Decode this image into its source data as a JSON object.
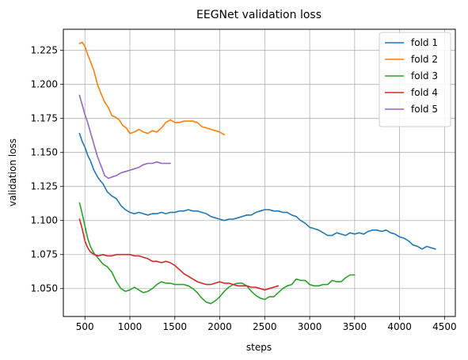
{
  "chart_data": {
    "type": "line",
    "title": "EEGNet validation loss",
    "xlabel": "steps",
    "ylabel": "validation loss",
    "xlim": [
      260,
      4620
    ],
    "ylim": [
      1.0295,
      1.2405
    ],
    "xticks": [
      500,
      1000,
      1500,
      2000,
      2500,
      3000,
      3500,
      4000,
      4500
    ],
    "yticks": [
      1.05,
      1.075,
      1.1,
      1.125,
      1.15,
      1.175,
      1.2,
      1.225
    ],
    "xtick_labels": [
      "500",
      "1000",
      "1500",
      "2000",
      "2500",
      "3000",
      "3500",
      "4000",
      "4500"
    ],
    "ytick_labels": [
      "1.050",
      "1.075",
      "1.100",
      "1.125",
      "1.150",
      "1.175",
      "1.200",
      "1.225"
    ],
    "grid": true,
    "legend_position": "top-right",
    "series": [
      {
        "name": "fold 1",
        "color": "#1f77b4",
        "points": [
          [
            440,
            1.164
          ],
          [
            470,
            1.158
          ],
          [
            500,
            1.154
          ],
          [
            530,
            1.148
          ],
          [
            560,
            1.144
          ],
          [
            600,
            1.137
          ],
          [
            650,
            1.131
          ],
          [
            700,
            1.127
          ],
          [
            750,
            1.121
          ],
          [
            800,
            1.118
          ],
          [
            850,
            1.116
          ],
          [
            900,
            1.111
          ],
          [
            950,
            1.108
          ],
          [
            1000,
            1.106
          ],
          [
            1050,
            1.105
          ],
          [
            1100,
            1.106
          ],
          [
            1150,
            1.105
          ],
          [
            1200,
            1.104
          ],
          [
            1250,
            1.105
          ],
          [
            1300,
            1.105
          ],
          [
            1350,
            1.106
          ],
          [
            1400,
            1.105
          ],
          [
            1450,
            1.106
          ],
          [
            1500,
            1.106
          ],
          [
            1550,
            1.107
          ],
          [
            1600,
            1.107
          ],
          [
            1650,
            1.108
          ],
          [
            1700,
            1.107
          ],
          [
            1750,
            1.107
          ],
          [
            1800,
            1.106
          ],
          [
            1850,
            1.105
          ],
          [
            1900,
            1.103
          ],
          [
            1950,
            1.102
          ],
          [
            2000,
            1.101
          ],
          [
            2050,
            1.1
          ],
          [
            2100,
            1.101
          ],
          [
            2150,
            1.101
          ],
          [
            2200,
            1.102
          ],
          [
            2250,
            1.103
          ],
          [
            2300,
            1.104
          ],
          [
            2350,
            1.104
          ],
          [
            2400,
            1.106
          ],
          [
            2450,
            1.107
          ],
          [
            2500,
            1.108
          ],
          [
            2550,
            1.108
          ],
          [
            2600,
            1.107
          ],
          [
            2650,
            1.107
          ],
          [
            2700,
            1.106
          ],
          [
            2750,
            1.106
          ],
          [
            2800,
            1.104
          ],
          [
            2850,
            1.103
          ],
          [
            2900,
            1.1
          ],
          [
            2950,
            1.098
          ],
          [
            3000,
            1.095
          ],
          [
            3050,
            1.094
          ],
          [
            3100,
            1.093
          ],
          [
            3150,
            1.091
          ],
          [
            3200,
            1.089
          ],
          [
            3250,
            1.089
          ],
          [
            3300,
            1.091
          ],
          [
            3350,
            1.09
          ],
          [
            3400,
            1.089
          ],
          [
            3450,
            1.091
          ],
          [
            3500,
            1.09
          ],
          [
            3550,
            1.091
          ],
          [
            3600,
            1.09
          ],
          [
            3650,
            1.092
          ],
          [
            3700,
            1.093
          ],
          [
            3750,
            1.093
          ],
          [
            3800,
            1.092
          ],
          [
            3850,
            1.093
          ],
          [
            3900,
            1.091
          ],
          [
            3950,
            1.09
          ],
          [
            4000,
            1.088
          ],
          [
            4050,
            1.087
          ],
          [
            4100,
            1.085
          ],
          [
            4150,
            1.082
          ],
          [
            4200,
            1.081
          ],
          [
            4250,
            1.079
          ],
          [
            4300,
            1.081
          ],
          [
            4350,
            1.08
          ],
          [
            4400,
            1.079
          ]
        ]
      },
      {
        "name": "fold 2",
        "color": "#ff7f0e",
        "points": [
          [
            440,
            1.23
          ],
          [
            470,
            1.231
          ],
          [
            500,
            1.228
          ],
          [
            530,
            1.222
          ],
          [
            560,
            1.217
          ],
          [
            600,
            1.21
          ],
          [
            640,
            1.2
          ],
          [
            680,
            1.193
          ],
          [
            720,
            1.187
          ],
          [
            760,
            1.183
          ],
          [
            800,
            1.177
          ],
          [
            840,
            1.176
          ],
          [
            880,
            1.174
          ],
          [
            920,
            1.17
          ],
          [
            960,
            1.168
          ],
          [
            1000,
            1.164
          ],
          [
            1050,
            1.165
          ],
          [
            1100,
            1.167
          ],
          [
            1150,
            1.165
          ],
          [
            1200,
            1.164
          ],
          [
            1250,
            1.166
          ],
          [
            1300,
            1.165
          ],
          [
            1350,
            1.168
          ],
          [
            1400,
            1.172
          ],
          [
            1450,
            1.174
          ],
          [
            1500,
            1.172
          ],
          [
            1550,
            1.172
          ],
          [
            1600,
            1.173
          ],
          [
            1650,
            1.173
          ],
          [
            1700,
            1.173
          ],
          [
            1750,
            1.172
          ],
          [
            1800,
            1.169
          ],
          [
            1850,
            1.168
          ],
          [
            1900,
            1.167
          ],
          [
            1950,
            1.166
          ],
          [
            2000,
            1.165
          ],
          [
            2050,
            1.163
          ]
        ]
      },
      {
        "name": "fold 3",
        "color": "#2ca02c",
        "points": [
          [
            440,
            1.113
          ],
          [
            470,
            1.105
          ],
          [
            500,
            1.096
          ],
          [
            530,
            1.087
          ],
          [
            560,
            1.081
          ],
          [
            600,
            1.076
          ],
          [
            650,
            1.072
          ],
          [
            700,
            1.068
          ],
          [
            750,
            1.066
          ],
          [
            800,
            1.062
          ],
          [
            850,
            1.055
          ],
          [
            900,
            1.05
          ],
          [
            950,
            1.048
          ],
          [
            1000,
            1.049
          ],
          [
            1050,
            1.051
          ],
          [
            1100,
            1.049
          ],
          [
            1150,
            1.047
          ],
          [
            1200,
            1.048
          ],
          [
            1250,
            1.05
          ],
          [
            1300,
            1.053
          ],
          [
            1350,
            1.055
          ],
          [
            1400,
            1.054
          ],
          [
            1450,
            1.054
          ],
          [
            1500,
            1.053
          ],
          [
            1550,
            1.053
          ],
          [
            1600,
            1.053
          ],
          [
            1650,
            1.052
          ],
          [
            1700,
            1.05
          ],
          [
            1750,
            1.047
          ],
          [
            1800,
            1.043
          ],
          [
            1850,
            1.04
          ],
          [
            1900,
            1.039
          ],
          [
            1950,
            1.041
          ],
          [
            2000,
            1.044
          ],
          [
            2050,
            1.048
          ],
          [
            2100,
            1.051
          ],
          [
            2150,
            1.053
          ],
          [
            2200,
            1.054
          ],
          [
            2250,
            1.054
          ],
          [
            2300,
            1.052
          ],
          [
            2350,
            1.048
          ],
          [
            2400,
            1.045
          ],
          [
            2450,
            1.043
          ],
          [
            2500,
            1.042
          ],
          [
            2550,
            1.044
          ],
          [
            2600,
            1.044
          ],
          [
            2650,
            1.047
          ],
          [
            2700,
            1.05
          ],
          [
            2750,
            1.052
          ],
          [
            2800,
            1.053
          ],
          [
            2850,
            1.057
          ],
          [
            2900,
            1.056
          ],
          [
            2950,
            1.056
          ],
          [
            3000,
            1.053
          ],
          [
            3050,
            1.052
          ],
          [
            3100,
            1.052
          ],
          [
            3150,
            1.053
          ],
          [
            3200,
            1.053
          ],
          [
            3250,
            1.056
          ],
          [
            3300,
            1.055
          ],
          [
            3350,
            1.055
          ],
          [
            3400,
            1.058
          ],
          [
            3450,
            1.06
          ],
          [
            3500,
            1.06
          ]
        ]
      },
      {
        "name": "fold 4",
        "color": "#d62728",
        "points": [
          [
            440,
            1.101
          ],
          [
            470,
            1.094
          ],
          [
            500,
            1.085
          ],
          [
            530,
            1.08
          ],
          [
            560,
            1.077
          ],
          [
            600,
            1.075
          ],
          [
            650,
            1.074
          ],
          [
            700,
            1.075
          ],
          [
            750,
            1.074
          ],
          [
            800,
            1.074
          ],
          [
            850,
            1.075
          ],
          [
            900,
            1.075
          ],
          [
            950,
            1.075
          ],
          [
            1000,
            1.075
          ],
          [
            1050,
            1.074
          ],
          [
            1100,
            1.074
          ],
          [
            1150,
            1.073
          ],
          [
            1200,
            1.072
          ],
          [
            1250,
            1.07
          ],
          [
            1300,
            1.07
          ],
          [
            1350,
            1.069
          ],
          [
            1400,
            1.07
          ],
          [
            1450,
            1.069
          ],
          [
            1500,
            1.067
          ],
          [
            1550,
            1.064
          ],
          [
            1600,
            1.061
          ],
          [
            1650,
            1.059
          ],
          [
            1700,
            1.057
          ],
          [
            1750,
            1.055
          ],
          [
            1800,
            1.054
          ],
          [
            1850,
            1.053
          ],
          [
            1900,
            1.053
          ],
          [
            1950,
            1.054
          ],
          [
            2000,
            1.055
          ],
          [
            2050,
            1.054
          ],
          [
            2100,
            1.054
          ],
          [
            2150,
            1.053
          ],
          [
            2200,
            1.052
          ],
          [
            2250,
            1.052
          ],
          [
            2300,
            1.052
          ],
          [
            2350,
            1.051
          ],
          [
            2400,
            1.051
          ],
          [
            2450,
            1.05
          ],
          [
            2500,
            1.049
          ],
          [
            2550,
            1.05
          ],
          [
            2600,
            1.051
          ],
          [
            2650,
            1.052
          ]
        ]
      },
      {
        "name": "fold 5",
        "color": "#9467bd",
        "points": [
          [
            440,
            1.192
          ],
          [
            470,
            1.185
          ],
          [
            500,
            1.178
          ],
          [
            530,
            1.172
          ],
          [
            560,
            1.165
          ],
          [
            600,
            1.156
          ],
          [
            640,
            1.147
          ],
          [
            680,
            1.14
          ],
          [
            720,
            1.133
          ],
          [
            760,
            1.131
          ],
          [
            800,
            1.132
          ],
          [
            850,
            1.133
          ],
          [
            900,
            1.135
          ],
          [
            950,
            1.136
          ],
          [
            1000,
            1.137
          ],
          [
            1050,
            1.138
          ],
          [
            1100,
            1.139
          ],
          [
            1150,
            1.141
          ],
          [
            1200,
            1.142
          ],
          [
            1250,
            1.142
          ],
          [
            1300,
            1.143
          ],
          [
            1350,
            1.142
          ],
          [
            1400,
            1.142
          ],
          [
            1450,
            1.142
          ]
        ]
      }
    ]
  }
}
